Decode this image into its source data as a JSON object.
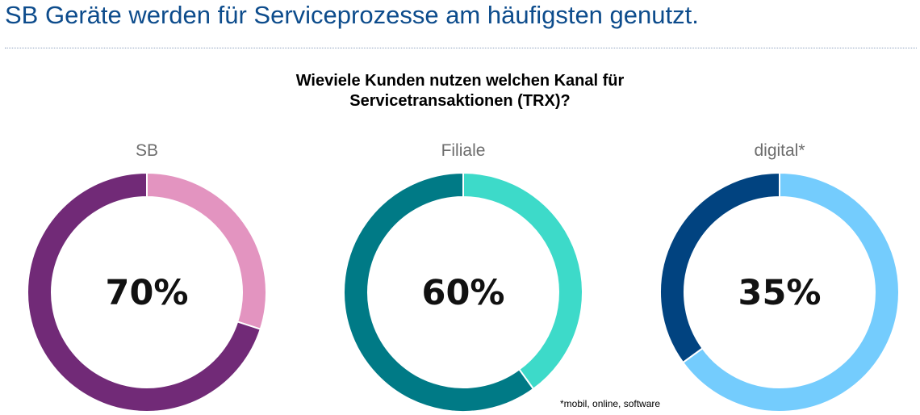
{
  "header": {
    "title": "SB Geräte werden für Serviceprozesse am häufigsten genutzt.",
    "title_color": "#0d4c8c"
  },
  "chart_question": {
    "line1": "Wieviele Kunden nutzen welchen Kanal für",
    "line2": "Servicetransaktionen (TRX)?"
  },
  "footnote": "*mobil, online, software",
  "chart_data": {
    "type": "pie",
    "title": "Wieviele Kunden nutzen welchen Kanal für Servicetransaktionen (TRX)?",
    "donut": true,
    "charts": [
      {
        "label": "SB",
        "value": 70,
        "display": "70%",
        "used_color": "#712a77",
        "rest_color": "#e394c0"
      },
      {
        "label": "Filiale",
        "value": 60,
        "display": "60%",
        "used_color": "#007a86",
        "rest_color": "#3ddac9"
      },
      {
        "label": "digital*",
        "value": 35,
        "display": "35%",
        "used_color": "#014380",
        "rest_color": "#74ccfd"
      }
    ]
  }
}
